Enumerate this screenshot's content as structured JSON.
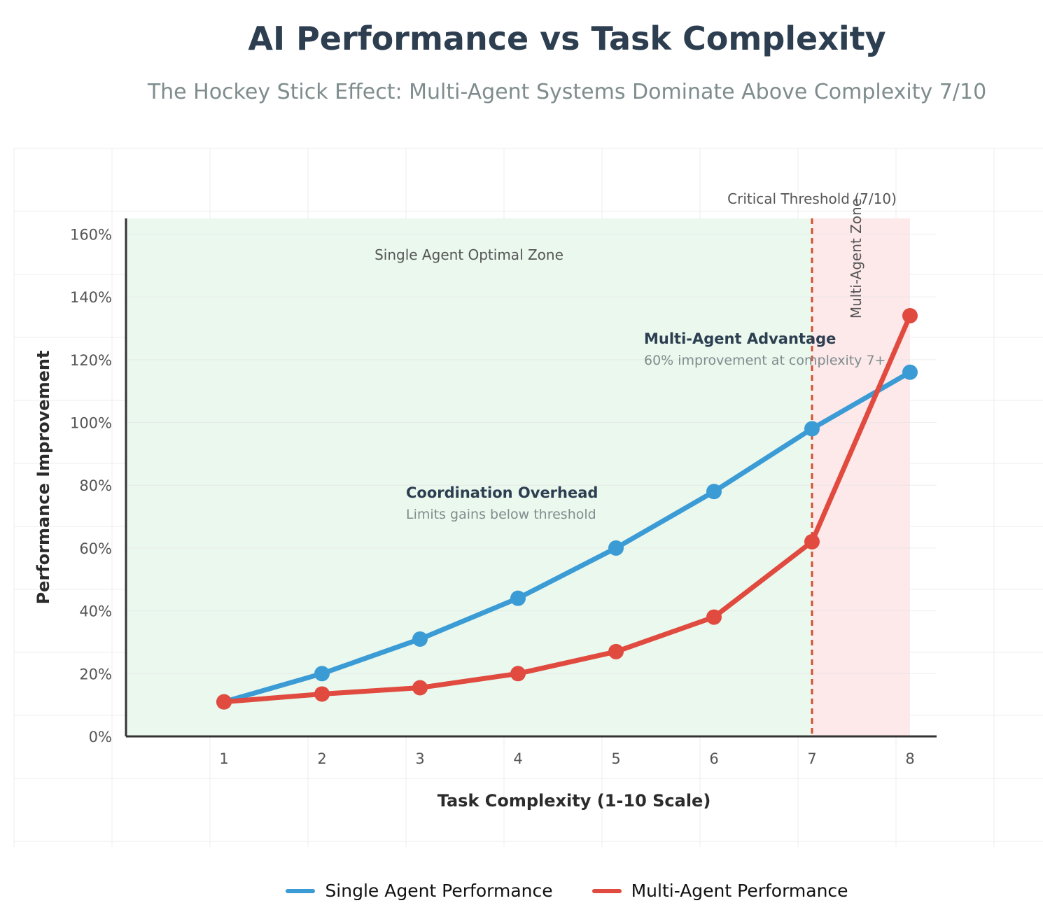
{
  "title": "AI Performance vs Task Complexity",
  "subtitle": "The Hockey Stick Effect: Multi-Agent Systems Dominate Above Complexity 7/10",
  "colors": {
    "single": "#3a9bd5",
    "multi": "#e04a3f",
    "single_zone": "#eaf8ee",
    "multi_zone": "#fde8ea",
    "threshold": "#d35030",
    "axis": "#333333",
    "grid": "#ececec",
    "dark_text": "#2c3e50",
    "muted_text": "#7f8c8d"
  },
  "chart_data": {
    "type": "line",
    "xlabel": "Task Complexity (1-10 Scale)",
    "ylabel": "Performance Improvement",
    "x": [
      1,
      2,
      3,
      4,
      5,
      6,
      7,
      8
    ],
    "ylim": [
      0,
      165
    ],
    "yticks": [
      0,
      20,
      40,
      60,
      80,
      100,
      120,
      140,
      160
    ],
    "ytick_labels": [
      "0%",
      "20%",
      "40%",
      "60%",
      "80%",
      "100%",
      "120%",
      "140%",
      "160%"
    ],
    "xtick_labels": [
      "1",
      "2",
      "3",
      "4",
      "5",
      "6",
      "7",
      "8"
    ],
    "grid": true,
    "legend_position": "bottom",
    "series": [
      {
        "name": "Single Agent Performance",
        "values": [
          11,
          20,
          31,
          44,
          60,
          78,
          98,
          116
        ]
      },
      {
        "name": "Multi-Agent Performance",
        "values": [
          11,
          13.5,
          15.5,
          20,
          27,
          38,
          62,
          134
        ]
      }
    ],
    "threshold": {
      "x": 7,
      "label": "Critical Threshold (7/10)"
    },
    "zones": [
      {
        "label": "Single Agent Optimal Zone",
        "from": 0,
        "to": 7
      },
      {
        "label": "Multi-Agent Zone",
        "from": 7,
        "to": 8
      }
    ],
    "annotations": [
      {
        "title": "Coordination Overhead",
        "text": "Limits gains below threshold"
      },
      {
        "title": "Multi-Agent Advantage",
        "text": "60% improvement at complexity 7+"
      }
    ]
  }
}
